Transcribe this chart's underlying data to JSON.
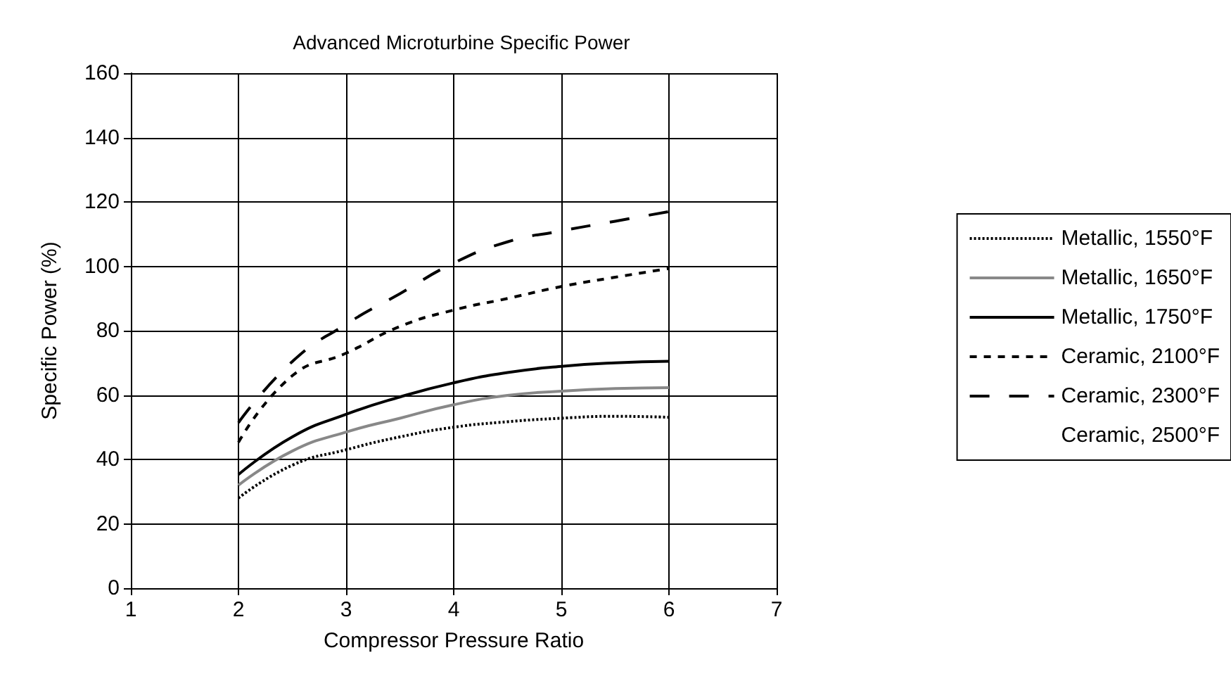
{
  "chart_data": {
    "type": "line",
    "title": "Advanced Microturbine Specific Power",
    "xlabel": "Compressor Pressure Ratio",
    "ylabel": "Specific Power (%)",
    "x": [
      2,
      2.5,
      3,
      3.5,
      4,
      4.5,
      5,
      5.5,
      6
    ],
    "series": [
      {
        "name": "Metallic, 1550°F",
        "color": "#000000",
        "line_style": "dotted",
        "values": [
          28,
          38.2,
          43,
          47,
          50,
          51.7,
          52.8,
          53.4,
          53.1
        ]
      },
      {
        "name": "Metallic, 1650°F",
        "color": "#888888",
        "line_style": "solid",
        "values": [
          32,
          42.6,
          48.5,
          52.8,
          57,
          59.9,
          61.2,
          62,
          62.3
        ]
      },
      {
        "name": "Metallic, 1750°F",
        "color": "#000000",
        "line_style": "solid",
        "values": [
          35.3,
          47,
          54,
          59.4,
          63.8,
          67,
          68.9,
          70,
          70.5
        ]
      },
      {
        "name": "Ceramic, 2100°F",
        "color": "#000000",
        "line_style": "dashed",
        "values": [
          45.3,
          66,
          73,
          81.3,
          86.4,
          90,
          93.7,
          96.6,
          99.3
        ]
      },
      {
        "name": "Ceramic, 2300°F",
        "color": "#000000",
        "line_style": "dashed",
        "values": [
          51.4,
          70.4,
          82,
          91.5,
          101,
          107.6,
          111,
          114,
          117
        ]
      },
      {
        "name": "Ceramic, 2500°F",
        "values": [
          null,
          null,
          null,
          null,
          null,
          null,
          null,
          null,
          null
        ]
      }
    ],
    "xlim": [
      1,
      7
    ],
    "xticks": [
      1,
      2,
      3,
      4,
      5,
      6,
      7
    ],
    "ylim": [
      0,
      160
    ],
    "yticks": [
      0,
      20,
      40,
      60,
      80,
      100,
      120,
      140,
      160
    ],
    "grid": true,
    "legend": "right",
    "marker": "none"
  }
}
